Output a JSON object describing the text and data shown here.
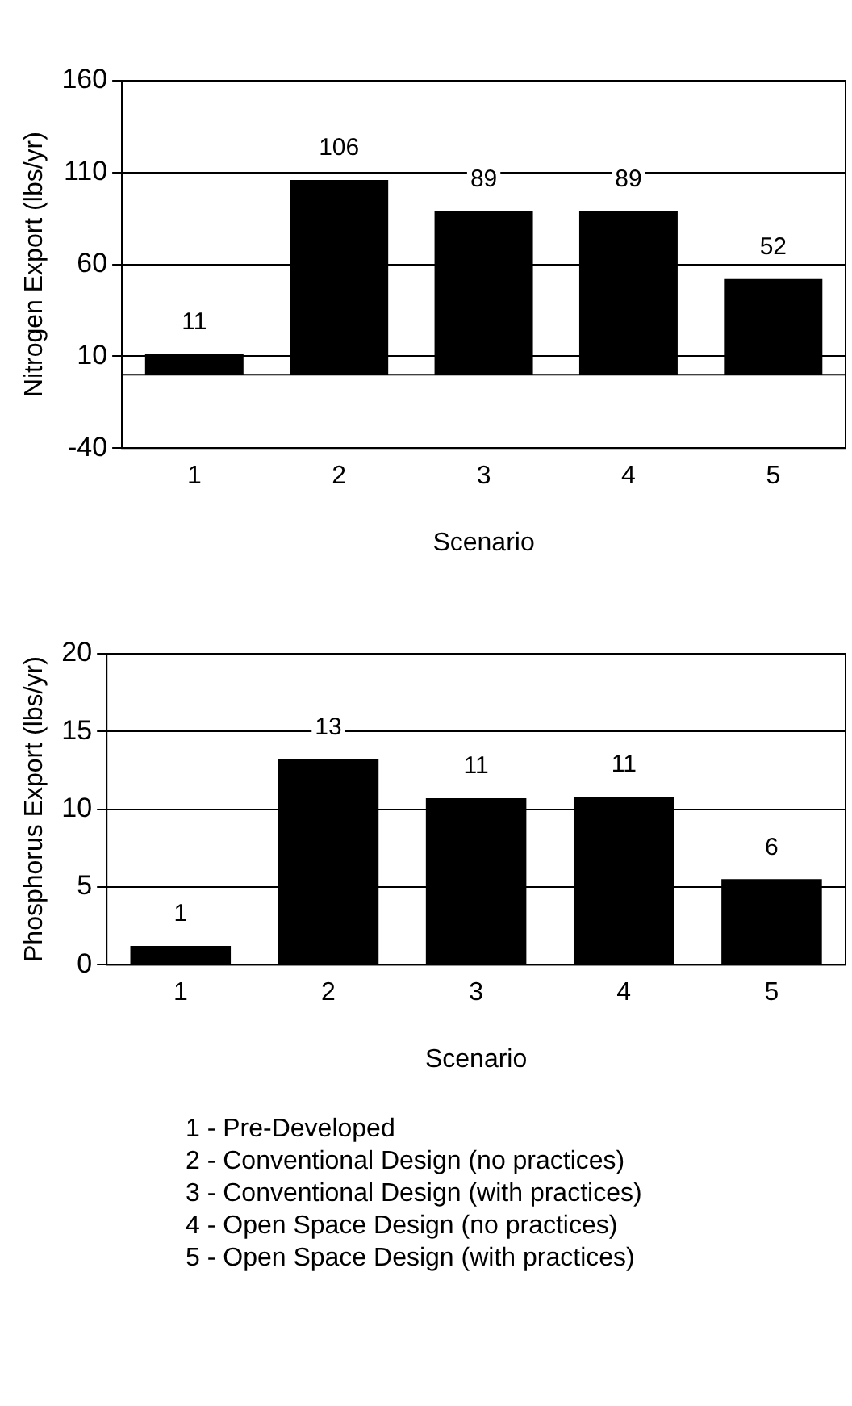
{
  "chart_data": [
    {
      "type": "bar",
      "categories": [
        "1",
        "2",
        "3",
        "4",
        "5"
      ],
      "values": [
        11,
        106,
        89,
        89,
        52
      ],
      "color": "#000000",
      "xlabel": "Scenario",
      "ylabel": "Nitrogen Export (lbs/yr)",
      "ylim": [
        -40,
        160
      ],
      "yticks": [
        -40,
        10,
        60,
        110,
        160
      ],
      "grid": "y",
      "data_labels": true
    },
    {
      "type": "bar",
      "categories": [
        "1",
        "2",
        "3",
        "4",
        "5"
      ],
      "values": [
        1.2,
        13.2,
        10.7,
        10.8,
        5.5
      ],
      "value_labels": [
        "1",
        "13",
        "11",
        "11",
        "6"
      ],
      "color": "#000000",
      "xlabel": "Scenario",
      "ylabel": "Phosphorus Export (lbs/yr)",
      "ylim": [
        0,
        20
      ],
      "yticks": [
        0,
        5,
        10,
        15,
        20
      ],
      "grid": "y",
      "annotations": [
        "1 - Pre-Developed",
        "2 - Conventional Design (no practices)",
        "3 - Conventional Design (with practices)",
        "4 - Open Space Design (no practices)",
        "5 - Open Space Design (with practices)"
      ]
    }
  ]
}
